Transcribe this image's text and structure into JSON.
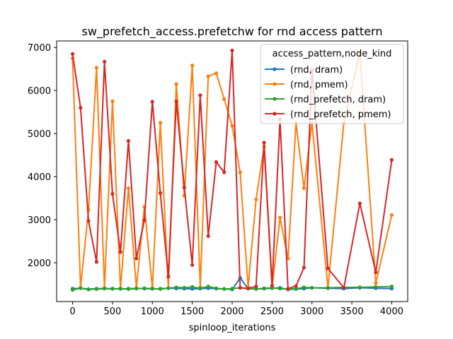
{
  "chart_data": {
    "type": "line",
    "title": "sw_prefetch_access.prefetchw for rnd access pattern",
    "xlabel": "spinloop_iterations",
    "ylabel": "",
    "xlim": [
      -200,
      4200
    ],
    "ylim": [
      1100,
      7150
    ],
    "x_ticks": [
      0,
      500,
      1000,
      1500,
      2000,
      2500,
      3000,
      3500,
      4000
    ],
    "y_ticks": [
      2000,
      3000,
      4000,
      5000,
      6000,
      7000
    ],
    "grid": false,
    "legend": {
      "title": "access_pattern,node_kind",
      "placement": "top-right"
    },
    "series": [
      {
        "name": "(rnd, dram)",
        "color": "#1f77b4",
        "x": [
          0,
          100,
          200,
          300,
          400,
          500,
          600,
          700,
          800,
          900,
          1000,
          1100,
          1200,
          1300,
          1400,
          1500,
          1600,
          1700,
          1800,
          1900,
          2000,
          2100,
          2200,
          2300,
          2400,
          2500,
          2600,
          2700,
          2800,
          2900,
          3000,
          3200,
          3400,
          3600,
          3800,
          4000
        ],
        "y": [
          1400,
          1410,
          1390,
          1400,
          1405,
          1400,
          1395,
          1400,
          1405,
          1400,
          1395,
          1400,
          1410,
          1405,
          1400,
          1395,
          1400,
          1410,
          1400,
          1395,
          1380,
          1650,
          1400,
          1395,
          1400,
          1410,
          1420,
          1380,
          1390,
          1400,
          1420,
          1410,
          1400,
          1420,
          1410,
          1400
        ]
      },
      {
        "name": "(rnd, pmem)",
        "color": "#ff7f0e",
        "x": [
          0,
          100,
          200,
          300,
          400,
          500,
          600,
          700,
          800,
          900,
          1000,
          1100,
          1200,
          1300,
          1400,
          1500,
          1600,
          1700,
          1800,
          1900,
          2000,
          2100,
          2200,
          2300,
          2400,
          2500,
          2600,
          2700,
          2800,
          2900,
          3000,
          3200,
          3400,
          3600,
          3800,
          4000
        ],
        "y": [
          6750,
          1430,
          3230,
          6530,
          1420,
          5750,
          1410,
          3730,
          1420,
          3300,
          1420,
          5250,
          1420,
          6150,
          3560,
          6580,
          1430,
          6330,
          6400,
          5800,
          5180,
          4100,
          1430,
          3470,
          4700,
          1420,
          3050,
          2100,
          5250,
          3730,
          5250,
          1420,
          5250,
          6880,
          1530,
          3110
        ]
      },
      {
        "name": "(rnd_prefetch, dram)",
        "color": "#2ca02c",
        "x": [
          0,
          100,
          200,
          300,
          400,
          500,
          600,
          700,
          800,
          900,
          1000,
          1100,
          1200,
          1300,
          1400,
          1500,
          1600,
          1700,
          1800,
          1900,
          2000,
          2100,
          2200,
          2300,
          2400,
          2500,
          2600,
          2700,
          2800,
          2900,
          3000,
          3200,
          3400,
          3600,
          3800,
          4000
        ],
        "y": [
          1370,
          1410,
          1380,
          1390,
          1400,
          1395,
          1400,
          1390,
          1400,
          1410,
          1400,
          1390,
          1410,
          1430,
          1420,
          1440,
          1410,
          1450,
          1410,
          1390,
          1400,
          1420,
          1400,
          1390,
          1410,
          1420,
          1400,
          1390,
          1400,
          1430,
          1420,
          1420,
          1430,
          1430,
          1440,
          1450
        ]
      },
      {
        "name": "(rnd_prefetch, pmem)",
        "color": "#d62728",
        "x": [
          0,
          100,
          200,
          300,
          400,
          500,
          600,
          700,
          800,
          900,
          1000,
          1100,
          1200,
          1300,
          1400,
          1500,
          1600,
          1700,
          1800,
          1900,
          2000,
          2100,
          2200,
          2300,
          2400,
          2500,
          2600,
          2700,
          2800,
          2900,
          3000,
          3200,
          3400,
          3600,
          3800,
          4000
        ],
        "y": [
          6850,
          5600,
          2970,
          2020,
          6670,
          3600,
          2250,
          4830,
          2100,
          2990,
          5740,
          3620,
          1680,
          5750,
          3750,
          1950,
          5890,
          2620,
          4340,
          4100,
          6930,
          1420,
          1410,
          1450,
          4790,
          1470,
          5330,
          1400,
          1460,
          1890,
          6480,
          1870,
          1420,
          3380,
          1780,
          4390
        ]
      }
    ]
  }
}
